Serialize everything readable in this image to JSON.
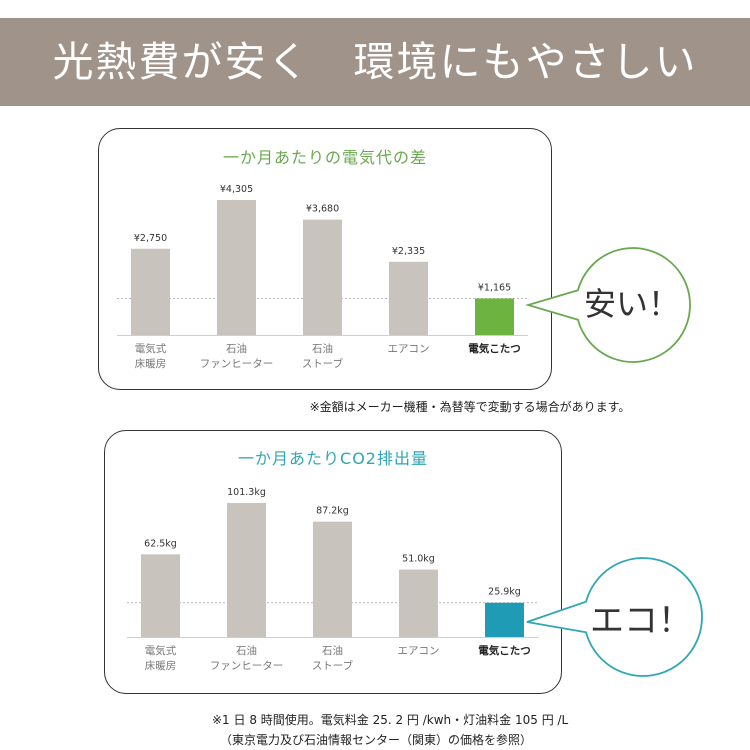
{
  "banner": {
    "title": "光熱費が安く　環境にもやさしい",
    "bg_color": "#a0938a"
  },
  "panel1": {
    "title": "一か月あたりの電気代の差"
  },
  "panel2": {
    "title": "一か月あたりCO2排出量"
  },
  "note1": "※金額はメーカー機種・為替等で変動する場合があります。",
  "footnote": {
    "line1": "※1 日 8 時間使用。電気料金 25. 2 円 /kwh・灯油料金 105 円 /L",
    "line2": "（東京電力及び石油情報センター（関東）の価格を参照）"
  },
  "bubble1": {
    "text": "安い！",
    "color": "#6aa84f"
  },
  "bubble2": {
    "text": "エコ！",
    "color": "#2fa6b4"
  },
  "chart_data": [
    {
      "type": "bar",
      "title": "一か月あたりの電気代の差",
      "categories": [
        [
          "電気式",
          "床暖房"
        ],
        [
          "石油",
          "ファンヒーター"
        ],
        [
          "石油",
          "ストーブ"
        ],
        [
          "エアコン"
        ],
        [
          "電気こたつ"
        ]
      ],
      "values": [
        2750,
        4305,
        3680,
        2335,
        1165
      ],
      "value_labels": [
        "¥2,750",
        "¥4,305",
        "¥3,680",
        "¥2,335",
        "¥1,165"
      ],
      "bar_colors": [
        "#c9c3bd",
        "#c9c3bd",
        "#c9c3bd",
        "#c9c3bd",
        "#6db33f"
      ],
      "highlight_index": 4,
      "reference_line": 1165,
      "ylim": [
        0,
        4305
      ]
    },
    {
      "type": "bar",
      "title": "一か月あたりCO2排出量",
      "categories": [
        [
          "電気式",
          "床暖房"
        ],
        [
          "石油",
          "ファンヒーター"
        ],
        [
          "石油",
          "ストーブ"
        ],
        [
          "エアコン"
        ],
        [
          "電気こたつ"
        ]
      ],
      "values": [
        62.5,
        101.3,
        87.2,
        51.0,
        25.9
      ],
      "value_labels": [
        "62.5kg",
        "101.3kg",
        "87.2kg",
        "51.0kg",
        "25.9kg"
      ],
      "bar_colors": [
        "#c9c3bd",
        "#c9c3bd",
        "#c9c3bd",
        "#c9c3bd",
        "#1f9bb5"
      ],
      "highlight_index": 4,
      "reference_line": 25.9,
      "ylim": [
        0,
        101.3
      ]
    }
  ]
}
